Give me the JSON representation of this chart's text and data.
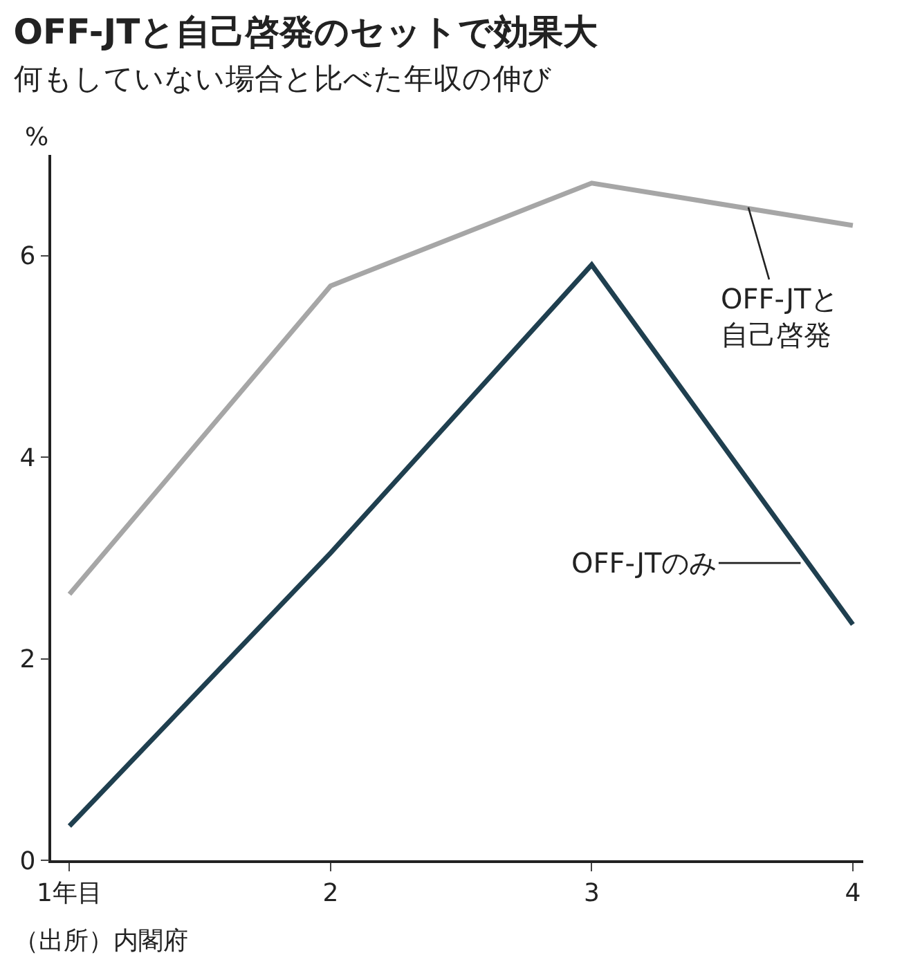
{
  "chart_data": {
    "type": "line",
    "title": "OFF-JTと自己啓発のセットで効果大",
    "subtitle": "何もしていない場合と比べた年収の伸び",
    "ylabel": "%",
    "x": [
      1,
      2,
      3,
      4
    ],
    "series": [
      {
        "name": "OFF-JTと自己啓発",
        "color": "#a6a6a6",
        "values": [
          2.64,
          5.7,
          6.72,
          6.3
        ]
      },
      {
        "name": "OFF-JTのみ",
        "color": "#1f3f4f",
        "values": [
          0.34,
          3.05,
          5.91,
          2.34
        ]
      }
    ],
    "xlim": [
      0.93,
      4.04
    ],
    "xticks": [
      {
        "value": 1,
        "label": "1年目"
      },
      2,
      3,
      4
    ],
    "ylim": [
      0,
      7
    ],
    "yticks": [
      0,
      2,
      4,
      6
    ],
    "legend": false,
    "marker": "none",
    "line_style": "solid",
    "annotations": [
      "（出所）内閣府"
    ]
  }
}
